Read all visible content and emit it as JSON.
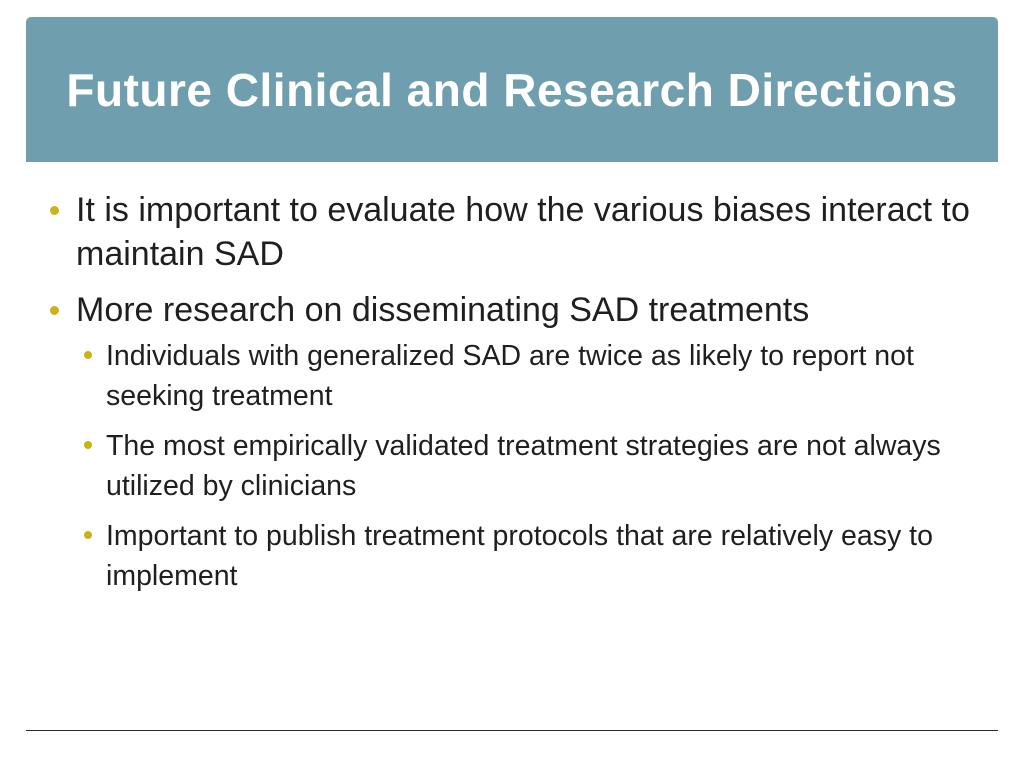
{
  "slide": {
    "title": "Future Clinical and Research Directions",
    "colors": {
      "title_band": "#6f9fae",
      "title_text": "#ffffff",
      "bullet": "#c9b21a",
      "body_text": "#1f1f1f"
    },
    "bullets": [
      {
        "text": "It is important to evaluate how the various biases interact to maintain SAD"
      },
      {
        "text": "More research on disseminating SAD treatments",
        "sub": [
          "Individuals with generalized SAD are twice as likely to report not seeking treatment",
          "The most empirically validated treatment strategies are not always utilized by clinicians",
          "Important to publish treatment protocols that are relatively easy to implement"
        ]
      }
    ]
  }
}
